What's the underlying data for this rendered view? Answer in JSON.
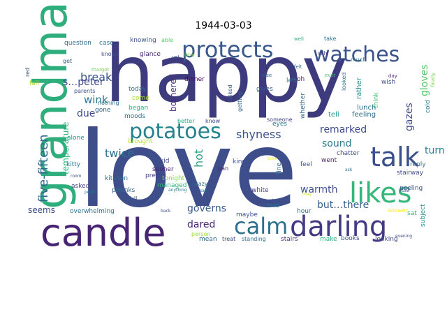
{
  "title": "1944-03-03",
  "words": [
    {
      "text": "happy",
      "color": "#3e3a7e"
    },
    {
      "text": "love",
      "color": "#3d4e8a"
    },
    {
      "text": "grandma",
      "color": "#2fae7d"
    },
    {
      "text": "candle",
      "color": "#482475"
    },
    {
      "text": "protects",
      "color": "#38598c"
    },
    {
      "text": "watches",
      "color": "#3b528b"
    },
    {
      "text": "potatoes",
      "color": "#26828e"
    },
    {
      "text": "talk",
      "color": "#3b4f8c"
    },
    {
      "text": "likes",
      "color": "#35b779"
    },
    {
      "text": "darling",
      "color": "#443a83"
    },
    {
      "text": "calm",
      "color": "#2d708e"
    },
    {
      "text": "five-fifteen",
      "color": "#31688e"
    },
    {
      "text": "s…peter",
      "color": "#404688"
    },
    {
      "text": "break",
      "color": "#3b528b"
    },
    {
      "text": "wink",
      "color": "#2a768e"
    },
    {
      "text": "due",
      "color": "#3e4989"
    },
    {
      "text": "twice",
      "color": "#2c718e"
    },
    {
      "text": "shyness",
      "color": "#3b528b"
    },
    {
      "text": "remarked",
      "color": "#3e4c8a"
    },
    {
      "text": "gazes",
      "color": "#3e4a89"
    },
    {
      "text": "gloves",
      "color": "#54c568"
    },
    {
      "text": "turn",
      "color": "#25848e"
    },
    {
      "text": "sound",
      "color": "#29798e"
    },
    {
      "text": "bothered",
      "color": "#46327e"
    },
    {
      "text": "hot",
      "color": "#33a187"
    },
    {
      "text": "temperature",
      "color": "#2db27d"
    },
    {
      "text": "warmth",
      "color": "#3b528b"
    },
    {
      "text": "governs",
      "color": "#39568c"
    },
    {
      "text": "dared",
      "color": "#482071"
    },
    {
      "text": "seems",
      "color": "#3e4c8a"
    },
    {
      "text": "but…there",
      "color": "#355f8d"
    },
    {
      "text": "question",
      "color": "#31688e"
    },
    {
      "text": "case",
      "color": "#2c728e"
    },
    {
      "text": "knowing",
      "color": "#3a538b"
    },
    {
      "text": "able",
      "color": "#5ec962"
    },
    {
      "text": "knows",
      "color": "#3d4d8a"
    },
    {
      "text": "get",
      "color": "#355e8d"
    },
    {
      "text": "glance",
      "color": "#482475"
    },
    {
      "text": "little",
      "color": "#73d056"
    },
    {
      "text": "makes",
      "color": "#414487"
    },
    {
      "text": "dinner",
      "color": "#440154"
    },
    {
      "text": "talked",
      "color": "#38588c"
    },
    {
      "text": "left",
      "color": "#2a778e"
    },
    {
      "text": "wish",
      "color": "#3d4e8a"
    },
    {
      "text": "think",
      "color": "#44bf70"
    },
    {
      "text": "silly",
      "color": "#482878"
    },
    {
      "text": "oh",
      "color": "#481a6c"
    },
    {
      "text": "gives",
      "color": "#34608d"
    },
    {
      "text": "rather",
      "color": "#25858e"
    },
    {
      "text": "lunch",
      "color": "#2c728e"
    },
    {
      "text": "feeling",
      "color": "#2f6c8e"
    },
    {
      "text": "tell",
      "color": "#1f9e89"
    },
    {
      "text": "cold",
      "color": "#2c738e"
    },
    {
      "text": "finally",
      "color": "#7ad151"
    },
    {
      "text": "looked",
      "color": "#2c728e"
    },
    {
      "text": "whether",
      "color": "#31678e"
    },
    {
      "text": "getting",
      "color": "#31678e"
    },
    {
      "text": "today",
      "color": "#2e6e8e"
    },
    {
      "text": "come",
      "color": "#a0da39"
    },
    {
      "text": "began",
      "color": "#2db27d"
    },
    {
      "text": "moods",
      "color": "#2c718e"
    },
    {
      "text": "brought",
      "color": "#b5de2b"
    },
    {
      "text": "better",
      "color": "#22a884"
    },
    {
      "text": "know",
      "color": "#3e4989"
    },
    {
      "text": "eyes",
      "color": "#2a778e"
    },
    {
      "text": "someone",
      "color": "#424086"
    },
    {
      "text": "went",
      "color": "#481f70"
    },
    {
      "text": "reply",
      "color": "#2d708e"
    },
    {
      "text": "chatter",
      "color": "#3e4a89"
    },
    {
      "text": "stairway",
      "color": "#3e4c8a"
    },
    {
      "text": "peeling",
      "color": "#3a548c"
    },
    {
      "text": "feel",
      "color": "#3b528b"
    },
    {
      "text": "fine",
      "color": "#2c728e"
    },
    {
      "text": "kind",
      "color": "#3c4f8a"
    },
    {
      "text": "pan",
      "color": "#482878"
    },
    {
      "text": "crazy",
      "color": "#2e6f8e"
    },
    {
      "text": "kid",
      "color": "#3e4a89"
    },
    {
      "text": "sooner",
      "color": "#482173"
    },
    {
      "text": "pretty",
      "color": "#433e85"
    },
    {
      "text": "kitchen",
      "color": "#2e6e8e"
    },
    {
      "text": "past",
      "color": "#355f8d"
    },
    {
      "text": "thinks",
      "color": "#31688e"
    },
    {
      "text": "kitty",
      "color": "#2d708e"
    },
    {
      "text": "asked",
      "color": "#433e85"
    },
    {
      "text": "alone",
      "color": "#21918c"
    },
    {
      "text": "managed",
      "color": "#2fb47c"
    },
    {
      "text": "tonight",
      "color": "#84d44b"
    },
    {
      "text": "full",
      "color": "#3b528b"
    },
    {
      "text": "white",
      "color": "#433d84"
    },
    {
      "text": "dearest",
      "color": "#3f4788"
    },
    {
      "text": "said",
      "color": "#2a768e"
    },
    {
      "text": "hour",
      "color": "#2a788e"
    },
    {
      "text": "sat",
      "color": "#32b67a"
    },
    {
      "text": "answer",
      "color": "#fde725"
    },
    {
      "text": "overwhelming",
      "color": "#2c718e"
    },
    {
      "text": "maybe",
      "color": "#3b528b"
    },
    {
      "text": "person",
      "color": "#9bd93c"
    },
    {
      "text": "mean",
      "color": "#31688e"
    },
    {
      "text": "treat",
      "color": "#3e4c8a"
    },
    {
      "text": "standing",
      "color": "#31688e"
    },
    {
      "text": "stairs",
      "color": "#46307e"
    },
    {
      "text": "make",
      "color": "#2ab07f"
    },
    {
      "text": "books",
      "color": "#3e4a89"
    },
    {
      "text": "looking",
      "color": "#3e4a89"
    },
    {
      "text": "subject",
      "color": "#21918c"
    },
    {
      "text": "red",
      "color": "#3d4e8a"
    },
    {
      "text": "fall",
      "color": "#a8db34"
    },
    {
      "text": "parents",
      "color": "#3b528b"
    },
    {
      "text": "gone",
      "color": "#31688e"
    },
    {
      "text": "nothing",
      "color": "#2e6f8e"
    },
    {
      "text": "margot",
      "color": "#7ad151"
    },
    {
      "text": "well",
      "color": "#29af7f"
    },
    {
      "text": "take",
      "color": "#2c728e"
    },
    {
      "text": "much",
      "color": "#2d708e"
    },
    {
      "text": "day",
      "color": "#482878"
    },
    {
      "text": "felt",
      "color": "#2c728e"
    },
    {
      "text": "ever",
      "color": "#44bf70"
    },
    {
      "text": "else",
      "color": "#34608d"
    },
    {
      "text": "yet",
      "color": "#3d4e8a"
    },
    {
      "text": "peter",
      "color": "#2c728e"
    },
    {
      "text": "room",
      "color": "#3b528b"
    },
    {
      "text": "anything",
      "color": "#2a788e"
    },
    {
      "text": "say",
      "color": "#2a788e"
    },
    {
      "text": "back",
      "color": "#3b528b"
    },
    {
      "text": "may",
      "color": "#d2e21b"
    },
    {
      "text": "time",
      "color": "#e5e419"
    },
    {
      "text": "evening",
      "color": "#3e4989"
    },
    {
      "text": "saw",
      "color": "#3b528b"
    },
    {
      "text": "ask",
      "color": "#2c728e"
    }
  ]
}
